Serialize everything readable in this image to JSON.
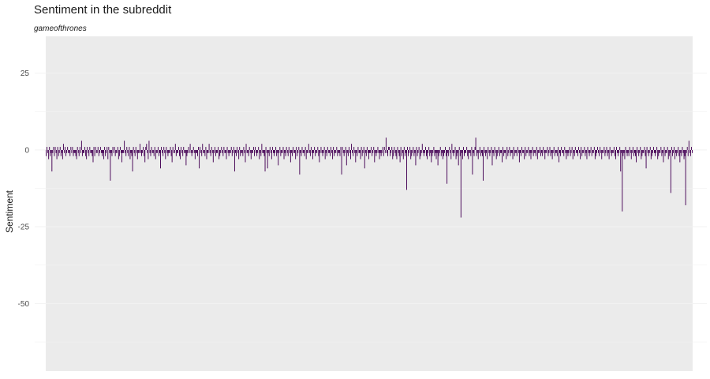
{
  "chart_data": {
    "type": "bar",
    "title": "Sentiment in the subreddit",
    "subtitle": "gameofthrones",
    "xlabel": "",
    "ylabel": "Sentiment",
    "ylim": [
      -72,
      37
    ],
    "y_ticks": [
      25,
      0,
      -25,
      -50
    ],
    "grid": true,
    "legend": "none",
    "bar_color": "#440154",
    "panel_color": "#ebebeb",
    "gridline_color": "#f2f2f2",
    "series": [
      {
        "values": [
          -2,
          1,
          -1,
          -3,
          1,
          -2,
          -1,
          -7,
          -1,
          1,
          -2,
          1,
          -1,
          -3,
          1,
          -2,
          -1,
          1,
          -2,
          -1,
          -3,
          2,
          -1,
          1,
          -2,
          -1,
          1,
          -1,
          -1,
          -2,
          1,
          -1,
          1,
          -2,
          -1,
          -1,
          -2,
          -3,
          1,
          -1,
          -2,
          1,
          -1,
          3,
          -2,
          -1,
          -1,
          1,
          -2,
          -3,
          1,
          -1,
          -2,
          1,
          -1,
          -1,
          -2,
          -4,
          1,
          -2,
          1,
          -1,
          -1,
          1,
          -2,
          -1,
          1,
          -1,
          -2,
          -1,
          -3,
          1,
          -2,
          -1,
          1,
          -3,
          1,
          -1,
          -10,
          -1,
          -2,
          1,
          -1,
          1,
          -2,
          -1,
          -1,
          1,
          -3,
          -2,
          1,
          -1,
          -4,
          -1,
          -1,
          3,
          -1,
          -2,
          1,
          -1,
          -2,
          1,
          -3,
          -1,
          -2,
          -7,
          1,
          -1,
          -2,
          1,
          -1,
          -3,
          -1,
          -1,
          2,
          -1,
          -2,
          -1,
          1,
          -2,
          -4,
          1,
          2,
          -1,
          -3,
          3,
          -1,
          -2,
          1,
          -1,
          -1,
          -2,
          1,
          -3,
          -1,
          -1,
          1,
          -2,
          -1,
          -6,
          1,
          -1,
          -2,
          1,
          -1,
          -3,
          1,
          -1,
          -2,
          -1,
          -1,
          1,
          -2,
          -4,
          1,
          -1,
          -1,
          2,
          -2,
          -1,
          -1,
          1,
          -2,
          -3,
          1,
          -1,
          -2,
          1,
          -1,
          -1,
          -5,
          -2,
          -1,
          1,
          -1,
          2,
          -1,
          -2,
          -1,
          1,
          -1,
          -3,
          -1,
          -1,
          -2,
          1,
          -6,
          1,
          -1,
          -2,
          2,
          -1,
          -1,
          -2,
          1,
          -3,
          -1,
          -1,
          2,
          -1,
          -2,
          1,
          -1,
          -4,
          -1,
          1,
          -2,
          -1,
          -1,
          1,
          -3,
          -2,
          -1,
          1,
          -1,
          -2,
          1,
          -1,
          -1,
          -3,
          1,
          -1,
          -2,
          -1,
          -1,
          1,
          -2,
          -1,
          1,
          -7,
          -1,
          -2,
          1,
          -1,
          -3,
          1,
          -2,
          -1,
          -1,
          -2,
          1,
          -1,
          -4,
          2,
          -1,
          -1,
          -2,
          1,
          -1,
          -3,
          -1,
          -1,
          1,
          -2,
          1,
          -1,
          -2,
          -1,
          1,
          -3,
          -1,
          -2,
          2,
          -1,
          -1,
          -2,
          -7,
          1,
          -1,
          -6,
          -1,
          -2,
          1,
          -1,
          -3,
          1,
          -1,
          -2,
          -1,
          1,
          -2,
          -1,
          -5,
          -1,
          1,
          -2,
          -1,
          -1,
          1,
          -3,
          -1,
          -2,
          1,
          -1,
          -2,
          1,
          -1,
          -4,
          -1,
          -2,
          1,
          -1,
          -1,
          -3,
          1,
          -2,
          -1,
          1,
          -8,
          -1,
          -2,
          1,
          -1,
          -1,
          -2,
          1,
          -3,
          -1,
          -1,
          2,
          -1,
          -2,
          1,
          -1,
          -3,
          -1,
          1,
          -2,
          -1,
          -1,
          1,
          -2,
          -4,
          -1,
          1,
          -1,
          -2,
          -1,
          1,
          -3,
          -1,
          -2,
          1,
          -1,
          -1,
          -2,
          1,
          -1,
          -3,
          1,
          -2,
          -1,
          -1,
          1,
          -2,
          -1,
          -1,
          -2,
          1,
          -8,
          1,
          -1,
          -2,
          -1,
          1,
          -5,
          -1,
          -2,
          1,
          -1,
          -3,
          2,
          -1,
          -2,
          1,
          -1,
          -4,
          -1,
          -2,
          1,
          -1,
          -1,
          -3,
          1,
          -2,
          -1,
          1,
          -6,
          -1,
          -2,
          1,
          -1,
          -3,
          -1,
          -1,
          1,
          -2,
          -1,
          1,
          -4,
          -1,
          -2,
          -1,
          1,
          -1,
          -3,
          -1,
          -2,
          -1,
          1,
          -2,
          1,
          -1,
          4,
          -1,
          -2,
          1,
          1,
          -2,
          -1,
          1,
          -3,
          -2,
          1,
          -1,
          -2,
          -3,
          1,
          -1,
          -2,
          -4,
          1,
          -2,
          -1,
          -3,
          1,
          -2,
          -1,
          -13,
          1,
          -2,
          -1,
          1,
          -3,
          -2,
          -1,
          1,
          -2,
          -1,
          -5,
          1,
          -2,
          -1,
          1,
          -3,
          -2,
          -1,
          2,
          -1,
          -2,
          -1,
          1,
          -2,
          -3,
          -1,
          1,
          -2,
          -1,
          -4,
          -2,
          -1,
          1,
          -2,
          -1,
          -3,
          -1,
          -5,
          -2,
          -1,
          1,
          -2,
          -1,
          -3,
          -2,
          -1,
          1,
          -2,
          -11,
          -1,
          -2,
          1,
          -1,
          -3,
          2,
          -1,
          -2,
          -1,
          1,
          -3,
          -2,
          -1,
          -5,
          1,
          -2,
          -22,
          -1,
          -3,
          1,
          -2,
          -1,
          -1,
          1,
          -2,
          -3,
          -1,
          -1,
          -2,
          1,
          -8,
          -1,
          -2,
          1,
          4,
          -2,
          -1,
          -3,
          -1,
          1,
          -2,
          -1,
          -2,
          -10,
          1,
          -1,
          -2,
          -1,
          -3,
          1,
          -1,
          -2,
          -1,
          1,
          -5,
          -1,
          -2,
          1,
          -1,
          -3,
          -2,
          -1,
          1,
          -2,
          -1,
          -1,
          -4,
          1,
          -2,
          -1,
          -1,
          -3,
          1,
          -2,
          -1,
          1,
          -2,
          -1,
          -1,
          -3,
          1,
          -2,
          -1,
          -1,
          -2,
          1,
          -1,
          -4,
          -1,
          -2,
          1,
          -1,
          -1,
          -3,
          1,
          -2,
          -1,
          -1,
          1,
          -2,
          -1,
          -3,
          -1,
          1,
          -2,
          -1,
          -1,
          -2,
          1,
          -3,
          -1,
          -1,
          1,
          -2,
          -1,
          -2,
          1,
          -1,
          -3,
          -1,
          -1,
          1,
          -2,
          -1,
          1,
          -2,
          -1,
          -3,
          -1,
          1,
          -2,
          -1,
          -1,
          -2,
          1,
          -4,
          -1,
          -2,
          1,
          -1,
          -1,
          -2,
          1,
          -1,
          -3,
          -1,
          -2,
          -1,
          1,
          -2,
          -1,
          1,
          -3,
          -1,
          -2,
          1,
          -1,
          -1,
          -2,
          1,
          -1,
          -3,
          1,
          -2,
          -1,
          -1,
          1,
          -2,
          -1,
          -3,
          1,
          -1,
          -2,
          -1,
          1,
          -2,
          -1,
          -1,
          1,
          -3,
          -2,
          -1,
          1,
          -1,
          -2,
          1,
          -1,
          -3,
          -1,
          -1,
          1,
          -2,
          -1,
          1,
          -2,
          -1,
          -3,
          1,
          -1,
          -2,
          -1,
          -1,
          1,
          -2,
          -3,
          1,
          -1,
          -2,
          -1,
          1,
          -7,
          -1,
          -20,
          -2,
          -1,
          -3,
          1,
          -1,
          -2,
          -1,
          -2,
          1,
          -1,
          -3,
          -1,
          1,
          -2,
          -1,
          -2,
          -4,
          1,
          -1,
          -2,
          -1,
          1,
          -3,
          -2,
          -1,
          -1,
          1,
          -2,
          -6,
          1,
          -1,
          -2,
          -1,
          1,
          -3,
          -2,
          -1,
          1,
          -1,
          -2,
          -1,
          1,
          -3,
          -2,
          -1,
          -1,
          1,
          -2,
          -1,
          -4,
          1,
          -2,
          -1,
          -1,
          1,
          -3,
          -2,
          -1,
          -14,
          1,
          -2,
          -1,
          1,
          -3,
          -1,
          -2,
          -1,
          1,
          -2,
          -4,
          -1,
          -2,
          1,
          -1,
          -3,
          -2,
          -18,
          -1,
          1,
          -2,
          3,
          -1,
          -2,
          1,
          -1
        ]
      }
    ]
  }
}
